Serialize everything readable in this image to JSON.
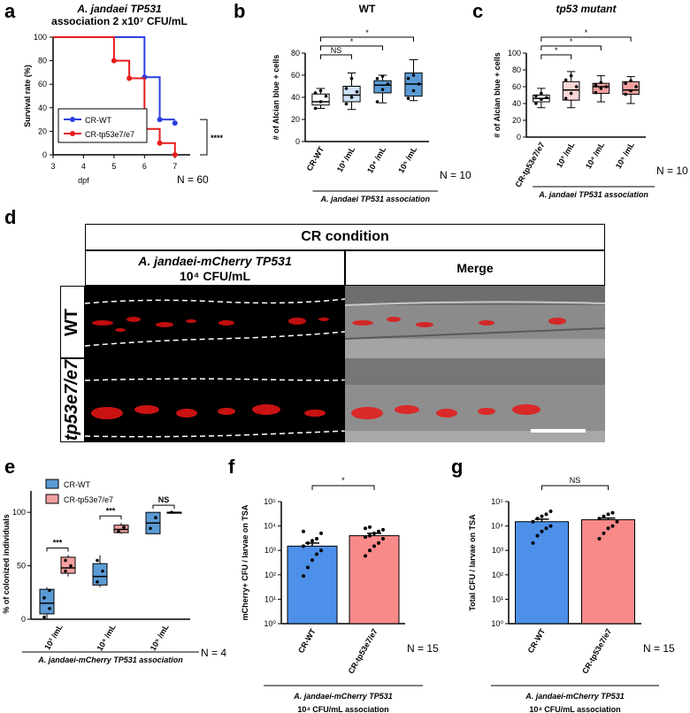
{
  "panels": {
    "a": "a",
    "b": "b",
    "c": "c",
    "d": "d",
    "e": "e",
    "f": "f",
    "g": "g"
  },
  "colors": {
    "wt_blue": "#2a3fe0",
    "mut_red": "#e81c1c",
    "box_blue": "#5b9bd5",
    "box_pink": "#f4a0a0",
    "bar_blue": "#4d90ea",
    "bar_pink": "#f98a8a"
  },
  "chart_data": [
    {
      "id": "a",
      "type": "line",
      "title": "A. jandaei TP531",
      "subtitle": "association 2 x10⁷ CFU/mL",
      "xlabel": "dpf",
      "ylabel": "Survival rate (%)",
      "xlim": [
        3,
        7.5
      ],
      "ylim": [
        0,
        100
      ],
      "xticks": [
        "3",
        "4",
        "5",
        "6",
        "7"
      ],
      "yticks": [
        "0",
        "20",
        "40",
        "60",
        "80",
        "100"
      ],
      "series": [
        {
          "name": "CR-WT",
          "steps": [
            [
              3,
              100
            ],
            [
              6,
              100
            ],
            [
              6,
              66
            ],
            [
              6.5,
              66
            ],
            [
              6.5,
              30
            ],
            [
              7,
              30
            ]
          ],
          "markers": [
            [
              6,
              66
            ],
            [
              6.5,
              30
            ],
            [
              7,
              27
            ]
          ]
        },
        {
          "name": "CR-tp53e7/e7",
          "steps": [
            [
              3,
              100
            ],
            [
              5,
              100
            ],
            [
              5,
              80
            ],
            [
              5.5,
              80
            ],
            [
              5.5,
              65
            ],
            [
              6,
              65
            ],
            [
              6,
              22
            ],
            [
              6.5,
              22
            ],
            [
              6.5,
              10
            ],
            [
              7,
              10
            ],
            [
              7,
              0
            ]
          ],
          "markers": [
            [
              5,
              80
            ],
            [
              5.5,
              65
            ],
            [
              6,
              22
            ],
            [
              6.5,
              10
            ],
            [
              7,
              0
            ]
          ]
        }
      ],
      "legend": [
        "CR-WT",
        "CR-tp53e7/e7"
      ],
      "significance": "****",
      "n_label": "N = 60"
    },
    {
      "id": "b",
      "type": "box",
      "title": "WT",
      "ylabel": "# of Alcian blue + cells",
      "ylim": [
        0,
        80
      ],
      "yticks": [
        "0",
        "20",
        "40",
        "60",
        "80"
      ],
      "categories": [
        "CR-WT",
        "10³ /mL",
        "10⁴ /mL",
        "10⁵ /mL"
      ],
      "boxes": [
        {
          "min": 30,
          "q1": 33,
          "median": 36,
          "q3": 43,
          "max": 48,
          "points": [
            30,
            36,
            41,
            44,
            46
          ]
        },
        {
          "min": 29,
          "q1": 36,
          "median": 42,
          "q3": 50,
          "max": 62,
          "points": [
            34,
            40,
            45,
            48,
            57
          ]
        },
        {
          "min": 35,
          "q1": 44,
          "median": 51,
          "q3": 55,
          "max": 60,
          "points": [
            36,
            47,
            52,
            57,
            59
          ]
        },
        {
          "min": 37,
          "q1": 41,
          "median": 52,
          "q3": 62,
          "max": 74,
          "points": [
            39,
            46,
            52,
            57,
            60
          ]
        }
      ],
      "brackets": [
        {
          "from": 0,
          "to": 1,
          "label": "NS"
        },
        {
          "from": 0,
          "to": 2,
          "label": "*"
        },
        {
          "from": 0,
          "to": 3,
          "label": "*"
        }
      ],
      "xgroup_label": "A. jandaei TP531 association",
      "n_label": "N = 10"
    },
    {
      "id": "c",
      "type": "box",
      "title": "tp53 mutant",
      "ylabel": "# of Alcian blue + cells",
      "ylim": [
        0,
        100
      ],
      "yticks": [
        "0",
        "20",
        "40",
        "60",
        "80",
        "100"
      ],
      "categories": [
        "CR-tp53e7/e7",
        "10³ /mL",
        "10⁴ /mL",
        "10⁵ /mL"
      ],
      "boxes": [
        {
          "min": 35,
          "q1": 42,
          "median": 46,
          "q3": 50,
          "max": 58,
          "points": [
            40,
            45,
            47,
            49,
            52
          ]
        },
        {
          "min": 35,
          "q1": 44,
          "median": 56,
          "q3": 66,
          "max": 78,
          "points": [
            46,
            52,
            60,
            68,
            73
          ]
        },
        {
          "min": 42,
          "q1": 52,
          "median": 60,
          "q3": 64,
          "max": 73,
          "points": [
            53,
            58,
            60,
            62,
            65
          ]
        },
        {
          "min": 40,
          "q1": 51,
          "median": 56,
          "q3": 66,
          "max": 72,
          "points": [
            51,
            55,
            60,
            64,
            67
          ]
        }
      ],
      "brackets": [
        {
          "from": 0,
          "to": 1,
          "label": "*"
        },
        {
          "from": 0,
          "to": 2,
          "label": "*"
        },
        {
          "from": 0,
          "to": 3,
          "label": "*"
        }
      ],
      "xgroup_label": "A. jandaei TP531 association",
      "n_label": "N = 10"
    },
    {
      "id": "e",
      "type": "box",
      "ylabel": "% of colonized individuals",
      "ylim": [
        0,
        120
      ],
      "yticks": [
        "0",
        "50",
        "100"
      ],
      "categories": [
        "10³ /mL",
        "10⁴ /mL",
        "10⁵ /mL"
      ],
      "legend": [
        "CR-WT",
        "CR-tp53e7/e7"
      ],
      "groups": [
        {
          "wt": {
            "min": 0,
            "q1": 5,
            "median": 15,
            "q3": 28,
            "max": 30,
            "points": [
              2,
              10,
              20,
              27
            ]
          },
          "mut": {
            "min": 40,
            "q1": 43,
            "median": 48,
            "q3": 58,
            "max": 60,
            "points": [
              45,
              50,
              55
            ]
          },
          "label": "***"
        },
        {
          "wt": {
            "min": 30,
            "q1": 32,
            "median": 40,
            "q3": 52,
            "max": 60,
            "points": [
              35,
              45,
              55
            ]
          },
          "mut": {
            "min": 80,
            "q1": 81,
            "median": 84,
            "q3": 88,
            "max": 90,
            "points": [
              82,
              86
            ]
          },
          "label": "***"
        },
        {
          "wt": {
            "min": 80,
            "q1": 80,
            "median": 90,
            "q3": 100,
            "max": 100,
            "points": [
              85,
              95
            ]
          },
          "mut": {
            "min": 100,
            "q1": 100,
            "median": 100,
            "q3": 100,
            "max": 100,
            "points": [
              100
            ]
          },
          "label": "NS"
        }
      ],
      "xgroup_label": "A. jandaei-mCherry TP531 association",
      "n_label": "N = 4"
    },
    {
      "id": "f",
      "type": "bar",
      "yscale": "log",
      "ylabel": "mCherry+ CFU / larvae on TSA",
      "ylim_exp": [
        0,
        5
      ],
      "yticks": [
        "10⁰",
        "10¹",
        "10²",
        "10³",
        "10⁴",
        "10⁵"
      ],
      "categories": [
        "CR-WT",
        "CR-tp53e7/e7"
      ],
      "values": [
        1500,
        4000
      ],
      "errors": [
        500,
        1000
      ],
      "points": [
        [
          90,
          200,
          400,
          700,
          1000,
          1500,
          2000,
          2500,
          3000,
          5000,
          6000
        ],
        [
          600,
          1000,
          1500,
          2000,
          3000,
          3500,
          4000,
          5000,
          6000,
          7000,
          8000,
          9000
        ]
      ],
      "significance": "*",
      "n_label": "N = 15",
      "xgroup_label": "A. jandaei-mCherry TP531",
      "xgroup_label2": "10⁴ CFU/mL association"
    },
    {
      "id": "g",
      "type": "bar",
      "yscale": "log",
      "ylabel": "Total CFU / larvae on TSA",
      "ylim_exp": [
        0,
        5
      ],
      "yticks": [
        "10⁰",
        "10¹",
        "10²",
        "10³",
        "10⁴",
        "10⁵"
      ],
      "categories": [
        "CR-WT",
        "CR-tp53e7/e7"
      ],
      "values": [
        15000,
        18000
      ],
      "errors": [
        4000,
        3000
      ],
      "points": [
        [
          2000,
          4000,
          6000,
          8000,
          10000,
          15000,
          20000,
          25000,
          30000,
          40000
        ],
        [
          3000,
          5000,
          8000,
          10000,
          15000,
          20000,
          25000,
          30000,
          35000
        ]
      ],
      "significance": "NS",
      "n_label": "N = 15",
      "xgroup_label": "A. jandaei-mCherry TP531",
      "xgroup_label2": "10⁴ CFU/mL association"
    }
  ],
  "panel_d": {
    "header": "CR condition",
    "col1": "A. jandaei-mCherry TP531",
    "col1b": "10⁴ CFU/mL",
    "col2": "Merge",
    "row1": "WT",
    "row2": "tp53e7/e7"
  }
}
